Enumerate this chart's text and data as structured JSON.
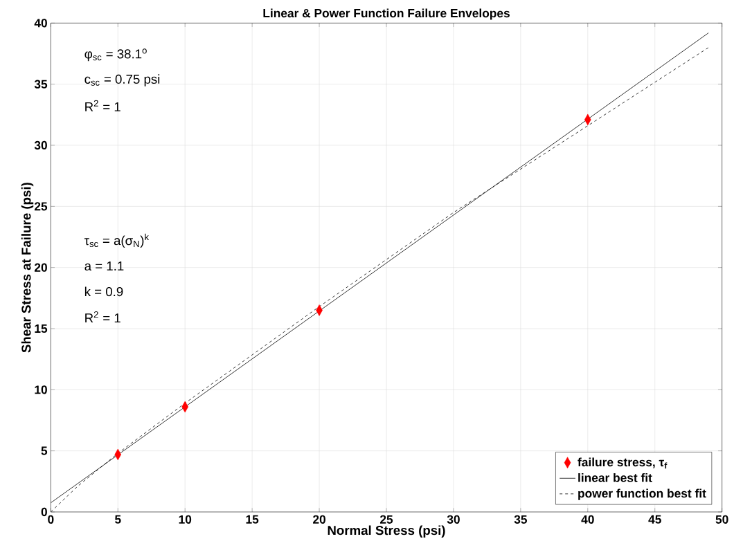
{
  "chart_data": {
    "type": "line",
    "title": "Linear & Power Function Failure Envelopes",
    "xlabel": "Normal Stress (psi)",
    "ylabel": "Shear Stress at Failure (psi)",
    "series": [
      {
        "name": "failure stress, τ$_{f}$",
        "type": "scatter",
        "marker": "diamond",
        "color": "#ff0000",
        "x": [
          5,
          10,
          20,
          40
        ],
        "values": [
          4.7,
          8.6,
          16.5,
          32.1
        ]
      },
      {
        "name": "linear best fit",
        "line_style": "solid",
        "color": "#000000",
        "x": [
          0,
          49
        ],
        "values": [
          0.75,
          39.2
        ]
      },
      {
        "name": "power function best fit",
        "line_style": "dashed",
        "color": "#000000",
        "x": [
          0,
          2,
          5,
          10,
          20,
          30,
          40,
          49
        ],
        "values": [
          0,
          2.1,
          4.8,
          8.9,
          16.8,
          24.5,
          31.6,
          38.0
        ]
      }
    ],
    "xlim": [
      0,
      50
    ],
    "xticks": [
      0,
      5,
      10,
      15,
      20,
      25,
      30,
      35,
      40,
      45,
      50
    ],
    "ylim": [
      0,
      40
    ],
    "yticks": [
      0,
      5,
      10,
      15,
      20,
      25,
      30,
      35,
      40
    ],
    "grid": true,
    "legend": "bottom right",
    "annotations": [
      "φ$_{sc}$ = 38.1$^{o}$",
      "c$_{sc}$ = 0.75 psi",
      "R$^{2}$ = 1",
      "τ$_{sc}$ = a(σ$_{N}$)$^{k}$",
      "a = 1.1",
      "k = 0.9",
      "R$^{2}$  = 1"
    ]
  }
}
